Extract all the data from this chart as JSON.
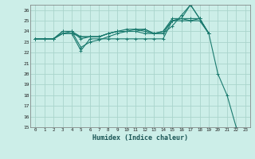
{
  "xlabel": "Humidex (Indice chaleur)",
  "xlim_min": -0.5,
  "xlim_max": 23.5,
  "ylim_min": 15,
  "ylim_max": 26.5,
  "yticks": [
    15,
    16,
    17,
    18,
    19,
    20,
    21,
    22,
    23,
    24,
    25,
    26
  ],
  "xticks": [
    0,
    1,
    2,
    3,
    4,
    5,
    6,
    7,
    8,
    9,
    10,
    11,
    12,
    13,
    14,
    15,
    16,
    17,
    18,
    19,
    20,
    21,
    22,
    23
  ],
  "bg_color": "#cceee8",
  "grid_color": "#aad4cc",
  "line_color": "#1a7a6e",
  "series": [
    [
      23.3,
      23.3,
      23.3,
      23.8,
      23.8,
      22.2,
      23.3,
      23.3,
      23.3,
      23.3,
      23.3,
      23.3,
      23.3,
      23.3,
      23.3,
      25.0,
      25.0,
      25.0,
      25.0,
      23.8
    ],
    [
      23.3,
      23.3,
      23.3,
      23.8,
      24.0,
      22.5,
      23.0,
      23.2,
      23.5,
      23.8,
      24.0,
      24.0,
      24.2,
      23.8,
      23.8,
      24.5,
      25.5,
      26.5,
      25.2,
      23.8,
      20.0,
      18.0,
      15.0
    ],
    [
      23.3,
      23.3,
      23.3,
      24.0,
      24.0,
      23.5,
      23.5,
      23.5,
      23.8,
      24.0,
      24.0,
      24.2,
      24.0,
      23.8,
      24.0,
      25.2,
      25.2,
      25.2,
      25.2,
      23.8
    ],
    [
      23.3,
      23.3,
      23.3,
      24.0,
      24.0,
      23.3,
      23.5,
      23.5,
      23.8,
      24.0,
      24.2,
      24.2,
      24.2,
      23.8,
      24.0,
      25.0,
      25.2,
      26.5,
      25.2,
      23.8
    ],
    [
      23.3,
      23.3,
      23.3,
      23.8,
      23.8,
      23.5,
      23.5,
      23.5,
      23.8,
      24.0,
      24.0,
      24.0,
      23.8,
      23.8,
      23.8,
      25.0,
      25.2,
      25.0,
      25.2,
      23.8
    ]
  ]
}
